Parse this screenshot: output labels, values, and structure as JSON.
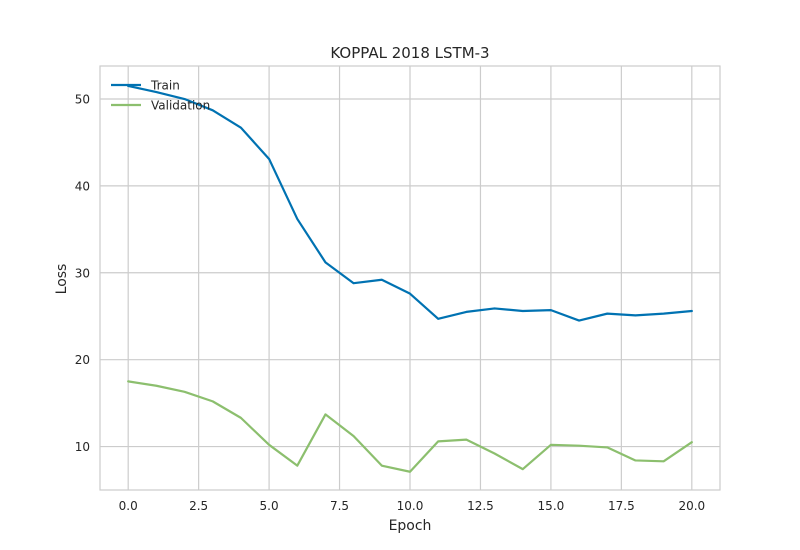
{
  "chart_data": {
    "type": "line",
    "title": "KOPPAL 2018 LSTM-3",
    "xlabel": "Epoch",
    "ylabel": "Loss",
    "xlim": [
      -1,
      21
    ],
    "ylim": [
      5,
      53.8
    ],
    "x_ticks": [
      0.0,
      2.5,
      5.0,
      7.5,
      10.0,
      12.5,
      15.0,
      17.5,
      20.0
    ],
    "x_tick_labels": [
      "0.0",
      "2.5",
      "5.0",
      "7.5",
      "10.0",
      "12.5",
      "15.0",
      "17.5",
      "20.0"
    ],
    "y_ticks": [
      10,
      20,
      30,
      40,
      50
    ],
    "y_tick_labels": [
      "10",
      "20",
      "30",
      "40",
      "50"
    ],
    "grid": true,
    "legend_position": "top-left",
    "x": [
      0,
      1,
      2,
      3,
      4,
      5,
      6,
      7,
      8,
      9,
      10,
      11,
      12,
      13,
      14,
      15,
      16,
      17,
      18,
      19,
      20
    ],
    "series": [
      {
        "name": "Train",
        "color": "#0072b2",
        "values": [
          51.5,
          50.8,
          50.0,
          48.7,
          46.7,
          43.1,
          36.2,
          31.2,
          28.8,
          29.2,
          27.6,
          24.7,
          25.5,
          25.9,
          25.6,
          25.7,
          24.5,
          25.3,
          25.1,
          25.3,
          25.6
        ]
      },
      {
        "name": "Validation",
        "color": "#8cbf6e",
        "values": [
          17.5,
          17.0,
          16.3,
          15.2,
          13.3,
          10.2,
          7.8,
          13.7,
          11.2,
          7.8,
          7.1,
          10.6,
          10.8,
          9.2,
          7.4,
          10.2,
          10.1,
          9.9,
          8.4,
          8.3,
          10.5
        ]
      }
    ]
  }
}
